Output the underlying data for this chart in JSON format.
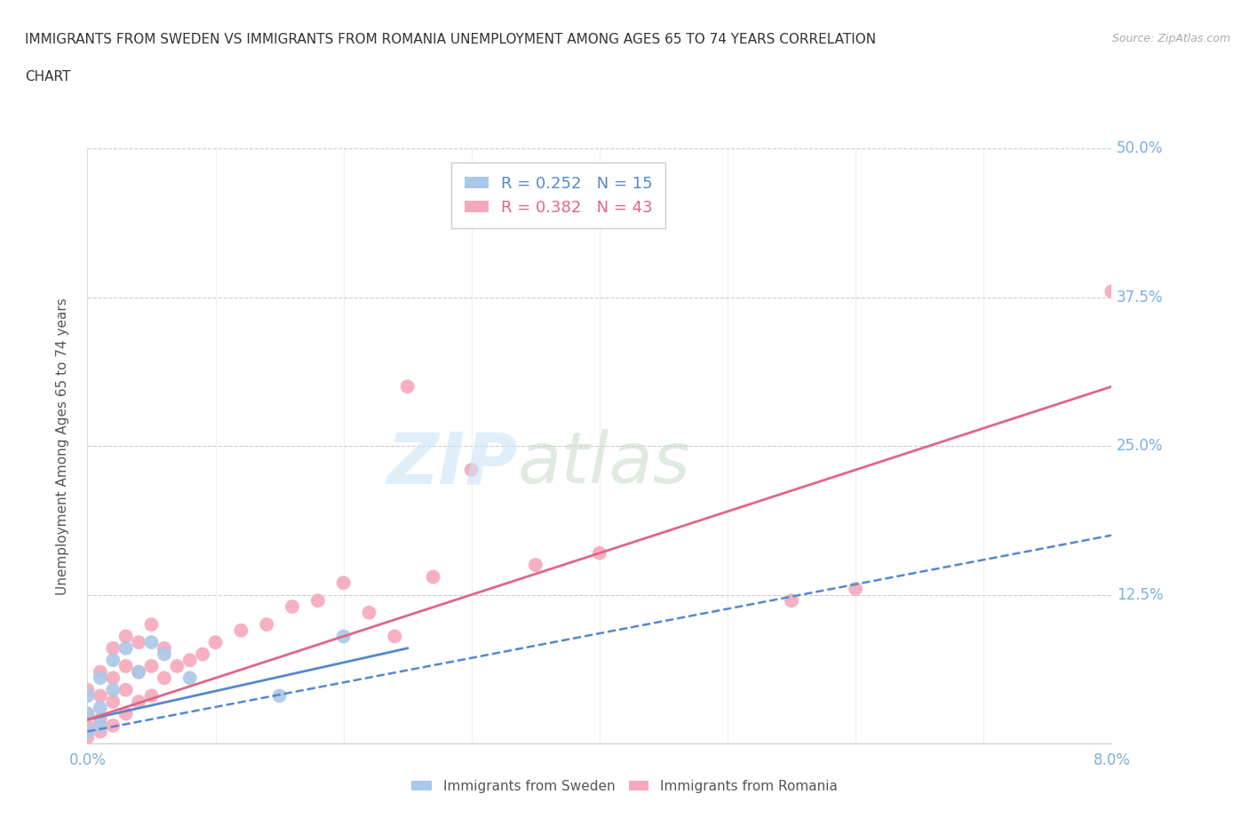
{
  "title_line1": "IMMIGRANTS FROM SWEDEN VS IMMIGRANTS FROM ROMANIA UNEMPLOYMENT AMONG AGES 65 TO 74 YEARS CORRELATION",
  "title_line2": "CHART",
  "source": "Source: ZipAtlas.com",
  "ylabel": "Unemployment Among Ages 65 to 74 years",
  "xlim": [
    0.0,
    0.08
  ],
  "ylim": [
    0.0,
    0.5
  ],
  "xtick_positions": [
    0.0,
    0.01,
    0.02,
    0.03,
    0.04,
    0.05,
    0.06,
    0.07,
    0.08
  ],
  "xticklabels": [
    "0.0%",
    "",
    "",
    "",
    "",
    "",
    "",
    "",
    "8.0%"
  ],
  "ytick_positions": [
    0.0,
    0.125,
    0.25,
    0.375,
    0.5
  ],
  "yticklabels": [
    "",
    "12.5%",
    "25.0%",
    "37.5%",
    "50.0%"
  ],
  "sweden_color": "#aac8e8",
  "romania_color": "#f5a8bc",
  "sweden_line_color": "#5588cc",
  "romania_line_color": "#e06688",
  "tick_label_color": "#7ab0e0",
  "legend_sweden_R": "0.252",
  "legend_sweden_N": "15",
  "legend_romania_R": "0.382",
  "legend_romania_N": "43",
  "sweden_scatter_x": [
    0.0,
    0.0,
    0.0,
    0.001,
    0.001,
    0.001,
    0.002,
    0.002,
    0.003,
    0.004,
    0.005,
    0.006,
    0.008,
    0.015,
    0.02
  ],
  "sweden_scatter_y": [
    0.01,
    0.025,
    0.04,
    0.015,
    0.03,
    0.055,
    0.045,
    0.07,
    0.08,
    0.06,
    0.085,
    0.075,
    0.055,
    0.04,
    0.09
  ],
  "romania_scatter_x": [
    0.0,
    0.0,
    0.0,
    0.0,
    0.001,
    0.001,
    0.001,
    0.001,
    0.002,
    0.002,
    0.002,
    0.002,
    0.003,
    0.003,
    0.003,
    0.003,
    0.004,
    0.004,
    0.004,
    0.005,
    0.005,
    0.005,
    0.006,
    0.006,
    0.007,
    0.008,
    0.009,
    0.01,
    0.012,
    0.014,
    0.016,
    0.018,
    0.02,
    0.022,
    0.024,
    0.025,
    0.027,
    0.03,
    0.035,
    0.04,
    0.055,
    0.06,
    0.08
  ],
  "romania_scatter_y": [
    0.005,
    0.015,
    0.025,
    0.045,
    0.01,
    0.02,
    0.04,
    0.06,
    0.015,
    0.035,
    0.055,
    0.08,
    0.025,
    0.045,
    0.065,
    0.09,
    0.035,
    0.06,
    0.085,
    0.04,
    0.065,
    0.1,
    0.055,
    0.08,
    0.065,
    0.07,
    0.075,
    0.085,
    0.095,
    0.1,
    0.115,
    0.12,
    0.135,
    0.11,
    0.09,
    0.3,
    0.14,
    0.23,
    0.15,
    0.16,
    0.12,
    0.13,
    0.38
  ],
  "sweden_trend_x": [
    0.0,
    0.025
  ],
  "sweden_trend_y": [
    0.02,
    0.08
  ],
  "sweden_dash_trend_x": [
    0.0,
    0.08
  ],
  "sweden_dash_trend_y": [
    0.01,
    0.175
  ],
  "romania_trend_x": [
    0.0,
    0.08
  ],
  "romania_trend_y": [
    0.02,
    0.3
  ]
}
